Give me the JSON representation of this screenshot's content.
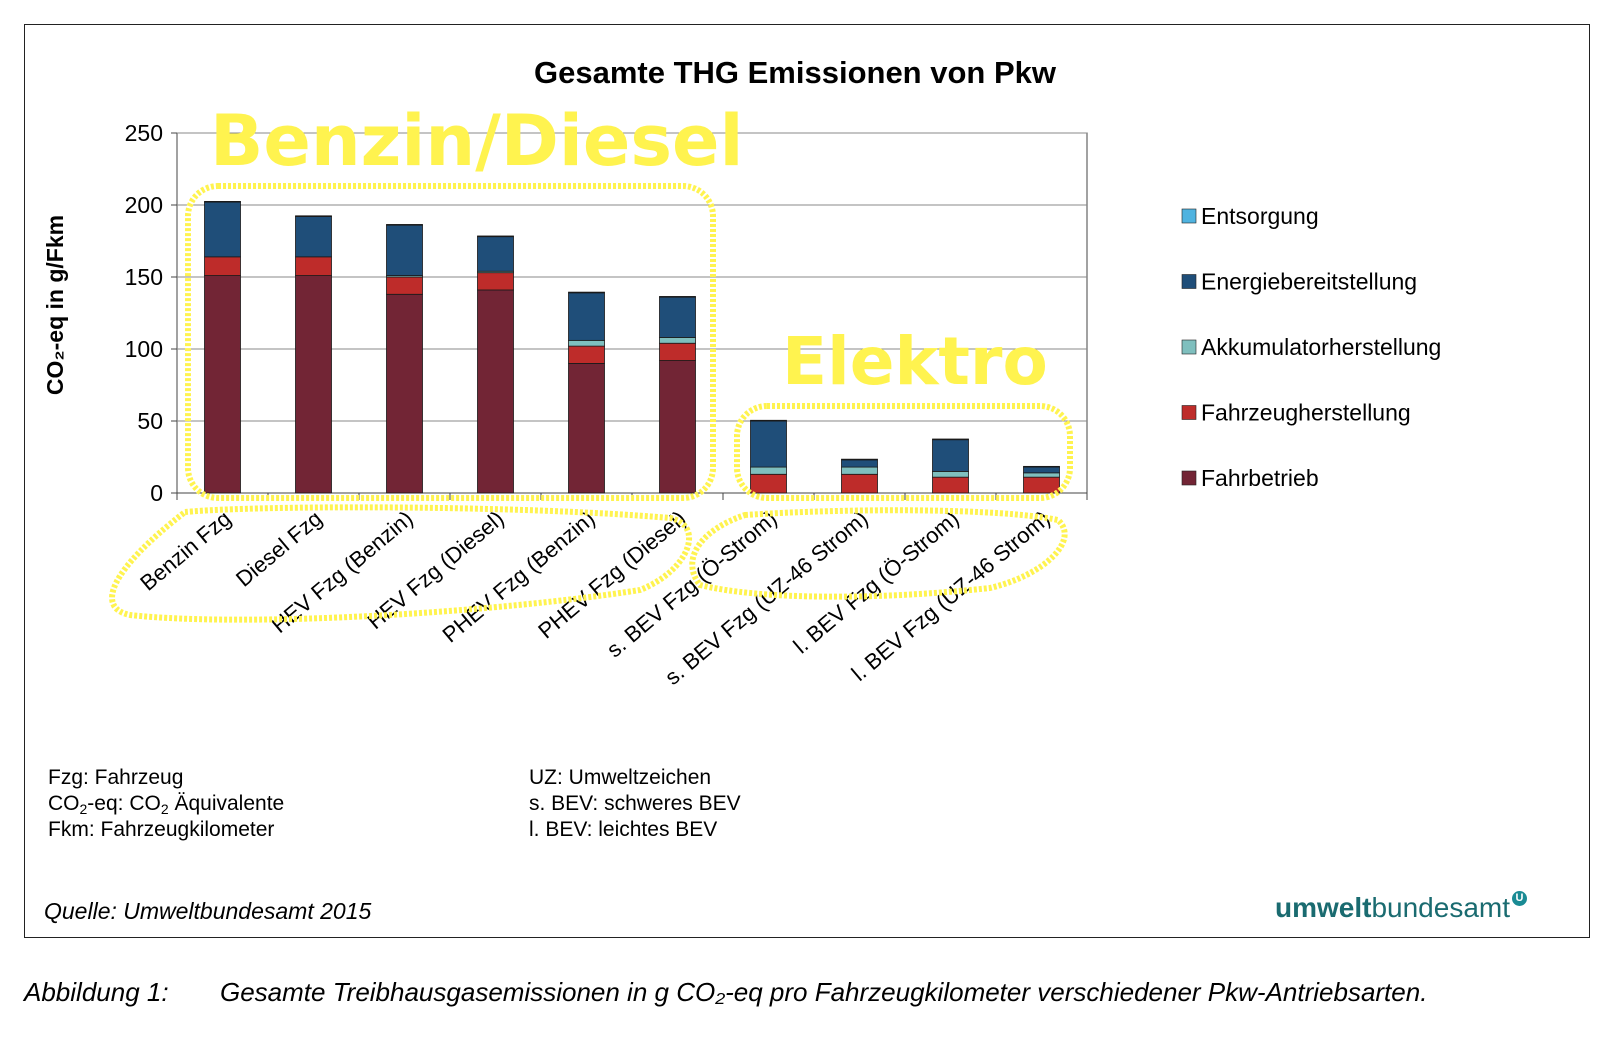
{
  "chart_data": {
    "type": "bar",
    "stacked": true,
    "title": "Gesamte THG Emissionen von Pkw",
    "ylabel": "CO₂-eq in g/Fkm",
    "ylim": [
      0,
      250
    ],
    "yticks": [
      0,
      50,
      100,
      150,
      200,
      250
    ],
    "grid": true,
    "legend_position": "right",
    "categories": [
      "Benzin Fzg",
      "Diesel Fzg",
      "HEV Fzg (Benzin)",
      "HEV Fzg (Diesel)",
      "PHEV Fzg (Benzin)",
      "PHEV Fzg (Diesel)",
      "s. BEV Fzg (Ö-Strom)",
      "s. BEV Fzg (UZ-46 Strom)",
      "l. BEV Fzg (Ö-Strom)",
      "l. BEV Fzg (UZ-46 Strom)"
    ],
    "series": [
      {
        "name": "Fahrbetrieb",
        "color": "#722535",
        "values": [
          151,
          151,
          138,
          141,
          90,
          92,
          0,
          0,
          0,
          0
        ]
      },
      {
        "name": "Fahrzeugherstellung",
        "color": "#be2c2a",
        "values": [
          13,
          13,
          12,
          12,
          12,
          12,
          13,
          13,
          11,
          11
        ]
      },
      {
        "name": "Akkumulatorherstellung",
        "color": "#7fbfbe",
        "values": [
          0,
          0,
          1,
          1,
          4,
          4,
          5,
          5,
          4,
          3
        ]
      },
      {
        "name": "Energiebereitstellung",
        "color": "#1f4e79",
        "values": [
          38,
          28,
          35,
          24,
          33,
          28,
          32,
          5,
          22,
          4
        ]
      },
      {
        "name": "Entsorgung",
        "color": "#4fb3e0",
        "values": [
          0.5,
          0.5,
          0.5,
          0.5,
          0.5,
          0.5,
          0.5,
          0.5,
          0.5,
          0.5
        ]
      }
    ],
    "annotations": [
      {
        "text": "Benzin/Diesel",
        "color": "#fff34f"
      },
      {
        "text": "Elektro",
        "color": "#fff34f"
      }
    ]
  },
  "notes": {
    "left": [
      {
        "pre": "Fzg: Fahrzeug",
        "sub1": "",
        "mid": "",
        "sub2": "",
        "post": ""
      },
      {
        "pre": "CO",
        "sub1": "2",
        "mid": "-eq: CO",
        "sub2": "2",
        "post": " Äquivalente"
      },
      {
        "pre": "Fkm: Fahrzeugkilometer",
        "sub1": "",
        "mid": "",
        "sub2": "",
        "post": ""
      }
    ],
    "right": [
      "UZ: Umweltzeichen",
      "s. BEV: schweres BEV",
      "l. BEV: leichtes BEV"
    ]
  },
  "source": "Quelle: Umweltbundesamt 2015",
  "logo": {
    "bold": "umwelt",
    "rest": "bundesamt",
    "badge": "U"
  },
  "caption": {
    "label": "Abbildung 1:",
    "text": "Gesamte Treibhausgasemissionen in g CO₂-eq pro Fahrzeugkilometer verschiedener Pkw-Antriebsarten."
  }
}
